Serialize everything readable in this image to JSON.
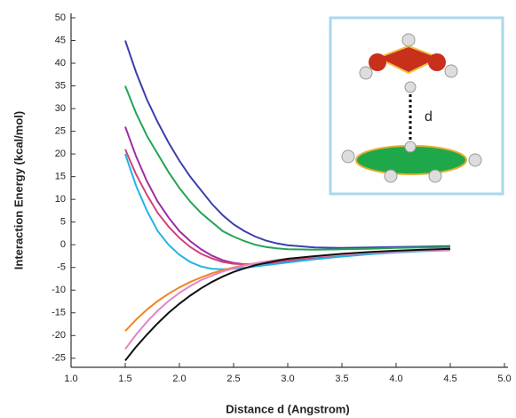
{
  "chart_data": {
    "type": "line",
    "xlabel": "Distance d (Angstrom)",
    "ylabel": "Interaction Energy (kcal/mol)",
    "annotation": "d",
    "x": [
      1.5,
      1.6,
      1.7,
      1.8,
      1.9,
      2.0,
      2.1,
      2.2,
      2.3,
      2.4,
      2.5,
      2.6,
      2.7,
      2.8,
      2.9,
      3.0,
      3.25,
      3.5,
      3.75,
      4.0,
      4.25,
      4.5
    ],
    "series": [
      {
        "color": "#3b3fae",
        "values": [
          45,
          38,
          32,
          27,
          22.5,
          18.5,
          15,
          12,
          9,
          6.5,
          4.5,
          3,
          1.8,
          0.9,
          0.3,
          -0.1,
          -0.6,
          -0.7,
          -0.6,
          -0.5,
          -0.4,
          -0.3
        ]
      },
      {
        "color": "#23a455",
        "values": [
          35,
          29,
          24,
          20,
          16,
          12.5,
          9.5,
          7,
          5,
          3,
          1.8,
          0.8,
          0,
          -0.5,
          -0.8,
          -1,
          -1.1,
          -1,
          -0.9,
          -0.7,
          -0.6,
          -0.5
        ]
      },
      {
        "color": "#9a2fa2",
        "values": [
          26,
          19.5,
          14,
          9.5,
          6,
          3,
          0.8,
          -1,
          -2.4,
          -3.4,
          -4,
          -4.3,
          -4.3,
          -4.1,
          -3.9,
          -3.6,
          -3,
          -2.4,
          -2,
          -1.6,
          -1.3,
          -1.1
        ]
      },
      {
        "color": "#d4407a",
        "values": [
          21,
          15.5,
          11,
          7,
          4,
          1.5,
          -0.5,
          -2,
          -3,
          -3.8,
          -4.2,
          -4.3,
          -4.2,
          -4,
          -3.8,
          -3.5,
          -2.9,
          -2.4,
          -2,
          -1.6,
          -1.3,
          -1.1
        ]
      },
      {
        "color": "#22b4e4",
        "values": [
          20,
          13,
          7.5,
          3,
          0,
          -2.2,
          -3.8,
          -4.8,
          -5.3,
          -5.4,
          -5.3,
          -5.1,
          -4.8,
          -4.5,
          -4.2,
          -3.9,
          -3.2,
          -2.6,
          -2.1,
          -1.7,
          -1.4,
          -1.2
        ]
      },
      {
        "color": "#f08424",
        "values": [
          -19,
          -16.5,
          -14.3,
          -12.4,
          -10.8,
          -9.4,
          -8.2,
          -7.2,
          -6.3,
          -5.6,
          -5,
          -4.5,
          -4.1,
          -3.7,
          -3.4,
          -3.1,
          -2.6,
          -2.2,
          -1.8,
          -1.5,
          -1.3,
          -1.1
        ]
      },
      {
        "color": "#e484c4",
        "values": [
          -23,
          -19.8,
          -17,
          -14.5,
          -12.4,
          -10.6,
          -9.1,
          -7.8,
          -6.8,
          -5.9,
          -5.2,
          -4.6,
          -4.1,
          -3.7,
          -3.4,
          -3.1,
          -2.6,
          -2.2,
          -1.8,
          -1.5,
          -1.3,
          -1.1
        ]
      },
      {
        "color": "#111111",
        "values": [
          -25.5,
          -22.5,
          -19.8,
          -17.3,
          -15,
          -13,
          -11.2,
          -9.6,
          -8.2,
          -7,
          -6,
          -5.2,
          -4.5,
          -4,
          -3.5,
          -3.1,
          -2.5,
          -2,
          -1.6,
          -1.3,
          -1.1,
          -0.9
        ]
      }
    ],
    "xlim": [
      1.0,
      5.0
    ],
    "xticks": [
      {
        "value": 1.0,
        "label": "1.0"
      },
      1.5,
      {
        "value": 2.0,
        "label": "2.0"
      },
      2.5,
      {
        "value": 3.0,
        "label": "3.0"
      },
      3.5,
      {
        "value": 4.0,
        "label": "4.0"
      },
      4.5,
      {
        "value": 5.0,
        "label": "5.0"
      }
    ],
    "ylim": [
      -27,
      50
    ],
    "yticks": [
      -25,
      -20,
      -15,
      -10,
      -5,
      0,
      5,
      10,
      15,
      20,
      25,
      30,
      35,
      40,
      45,
      50
    ]
  }
}
